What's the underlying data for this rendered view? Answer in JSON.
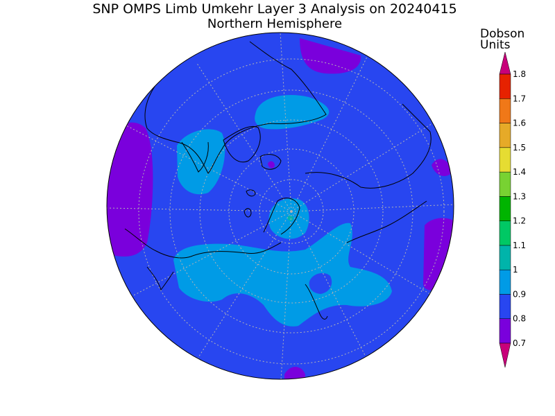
{
  "title": "SNP OMPS Limb Umkehr Layer 3 Analysis on 20240415",
  "subtitle": "Northern Hemisphere",
  "units_label": [
    "Dobson",
    "Units"
  ],
  "colorbar": {
    "ticks": [
      "0.7",
      "0.8",
      "0.9",
      "1",
      "1.1",
      "1.2",
      "1.3",
      "1.4",
      "1.5",
      "1.6",
      "1.7",
      "1.8"
    ],
    "colors": [
      "#7a00dc",
      "#6a1fe6",
      "#2846f0",
      "#009be6",
      "#00b4aa",
      "#00c864",
      "#00b400",
      "#78d232",
      "#e6dc32",
      "#e6aa28",
      "#f07818",
      "#e62200",
      "#c8007a"
    ],
    "under_color": "#c8007a",
    "over_color": "#c8007a"
  },
  "map": {
    "projection": "north-polar-stereographic",
    "background_color": "#2846f0",
    "gridline_color": "#b4b4b4"
  }
}
